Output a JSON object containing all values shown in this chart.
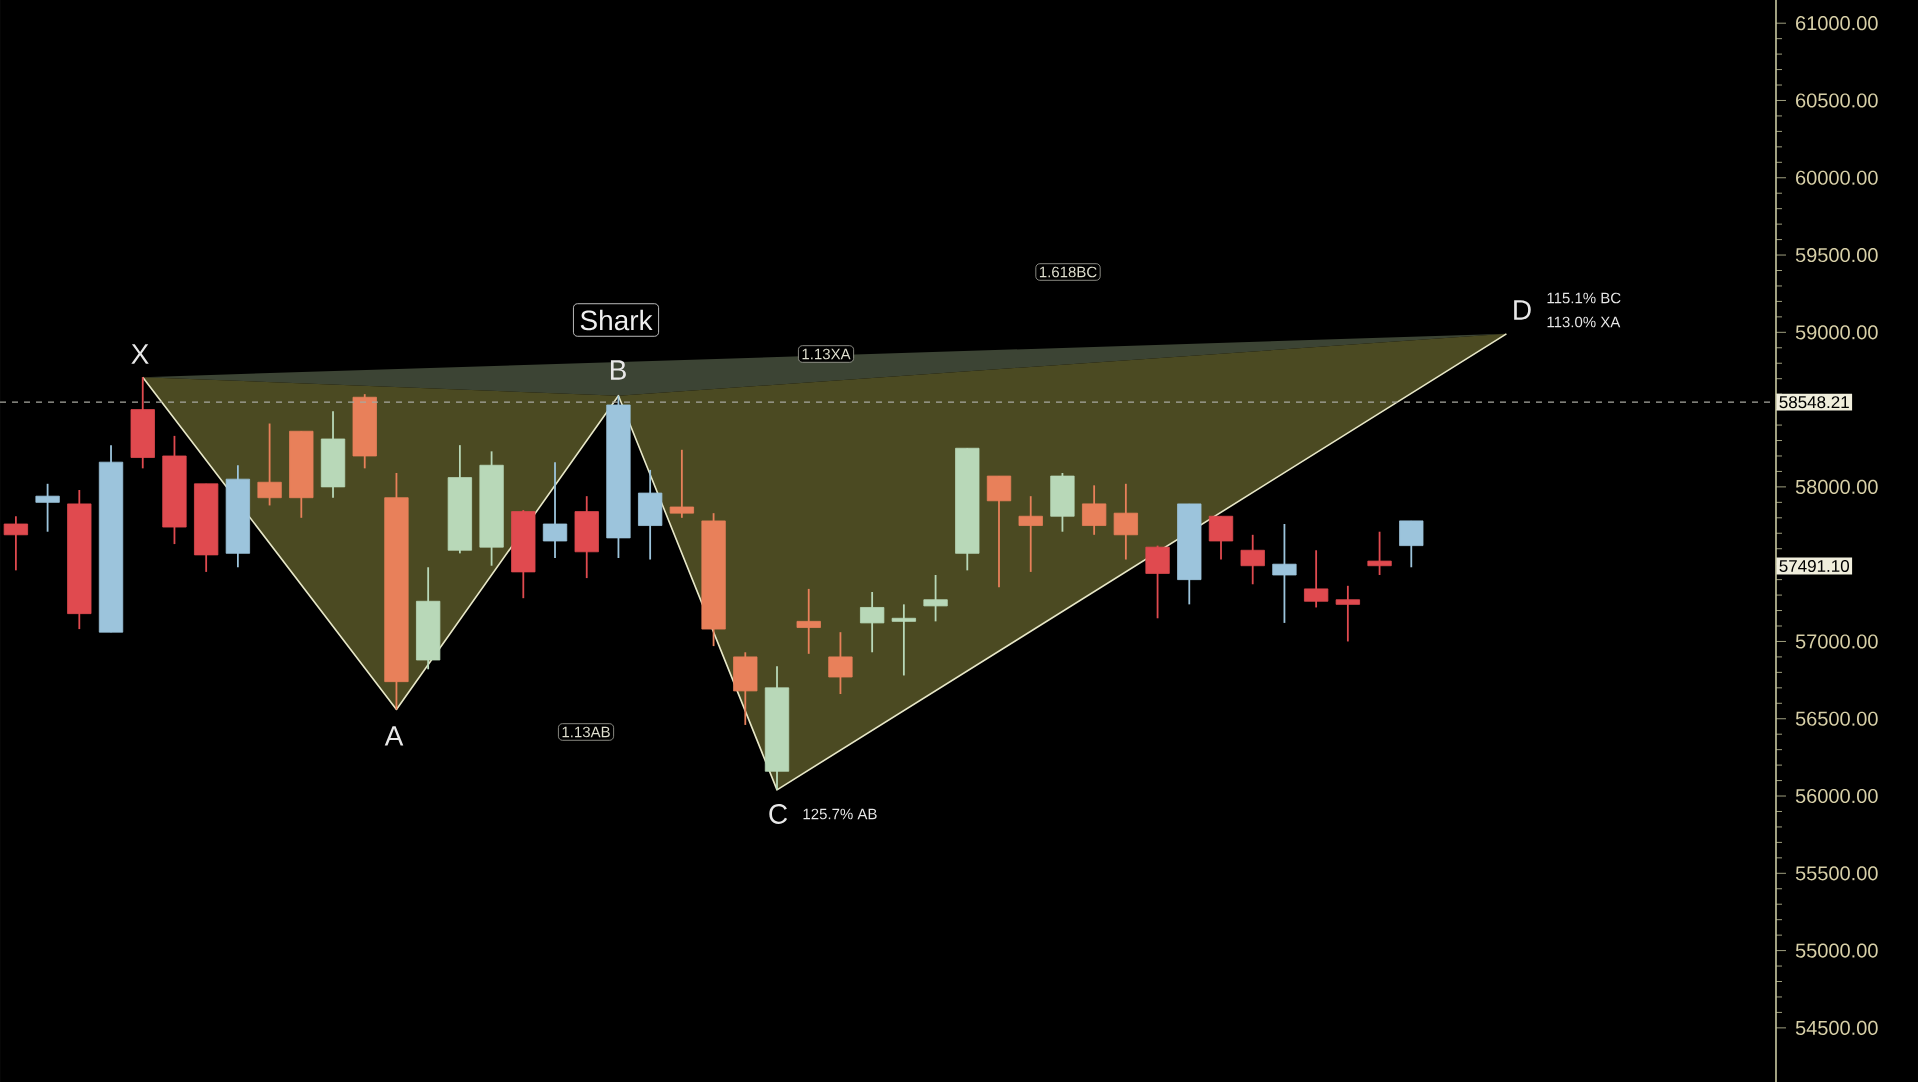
{
  "chart_data": {
    "type": "candlestick",
    "categories": [
      null,
      null,
      null,
      null,
      null,
      null,
      null,
      null,
      null,
      null,
      null,
      null,
      null,
      null,
      null,
      null,
      null,
      null,
      null,
      null,
      null,
      null,
      null,
      null,
      null,
      null,
      null,
      null,
      null,
      null,
      null,
      null,
      null,
      null,
      null,
      null,
      null,
      null,
      null,
      null,
      null,
      null,
      null,
      null,
      null,
      null,
      null,
      null,
      null,
      null,
      null,
      null,
      null,
      null,
      null,
      null
    ],
    "ohlc": [
      [
        57760,
        57810,
        57460,
        57690
      ],
      [
        57900,
        58020,
        57710,
        57940
      ],
      [
        57890,
        57980,
        57080,
        57180
      ],
      [
        57060,
        58270,
        57060,
        58160
      ],
      [
        58500,
        58710,
        58120,
        58190
      ],
      [
        58200,
        58330,
        57630,
        57740
      ],
      [
        58020,
        58020,
        57450,
        57560
      ],
      [
        57570,
        58140,
        57480,
        58050
      ],
      [
        58030,
        58410,
        57880,
        57930
      ],
      [
        58360,
        58360,
        57800,
        57930
      ],
      [
        58000,
        58490,
        57930,
        58310
      ],
      [
        58580,
        58600,
        58120,
        58200
      ],
      [
        57930,
        58090,
        56560,
        56740
      ],
      [
        56880,
        57480,
        56820,
        57260
      ],
      [
        57590,
        58270,
        57570,
        58060
      ],
      [
        57610,
        58230,
        57490,
        58140
      ],
      [
        57840,
        57850,
        57280,
        57450
      ],
      [
        57650,
        58160,
        57540,
        57760
      ],
      [
        57840,
        57940,
        57410,
        57580
      ],
      [
        57670,
        58590,
        57540,
        58530
      ],
      [
        57750,
        58110,
        57530,
        57960
      ],
      [
        57870,
        58240,
        57800,
        57830
      ],
      [
        57780,
        57830,
        56970,
        57080
      ],
      [
        56900,
        56930,
        56460,
        56680
      ],
      [
        56160,
        56840,
        56040,
        56700
      ],
      [
        57130,
        57340,
        56920,
        57090
      ],
      [
        56900,
        57060,
        56660,
        56770
      ],
      [
        57120,
        57320,
        56930,
        57220
      ],
      [
        57130,
        57240,
        56780,
        57150
      ],
      [
        57230,
        57430,
        57130,
        57270
      ],
      [
        57570,
        58250,
        57460,
        58250
      ],
      [
        58070,
        58070,
        57350,
        57910
      ],
      [
        57810,
        57940,
        57450,
        57750
      ],
      [
        57810,
        58090,
        57710,
        58070
      ],
      [
        57890,
        58010,
        57690,
        57750
      ],
      [
        57830,
        58020,
        57530,
        57690
      ],
      [
        57610,
        57620,
        57150,
        57440
      ],
      [
        57400,
        57890,
        57240,
        57890
      ],
      [
        57810,
        57810,
        57530,
        57650
      ],
      [
        57590,
        57690,
        57370,
        57490
      ],
      [
        57430,
        57760,
        57120,
        57500
      ],
      [
        57340,
        57590,
        57220,
        57260
      ],
      [
        57270,
        57360,
        57000,
        57240
      ],
      [
        57520,
        57710,
        57430,
        57490
      ],
      [
        57620,
        57780,
        57480,
        57780
      ],
      null,
      null,
      null,
      null,
      null,
      null,
      null,
      null,
      null,
      null,
      null
    ],
    "colors": [
      "#e04a4f",
      "#9cc4dc",
      "#e04a4f",
      "#9cc4dc",
      "#e04a4f",
      "#e04a4f",
      "#e04a4f",
      "#9cc4dc",
      "#e8805a",
      "#e8805a",
      "#b8d8b8",
      "#e8805a",
      "#e8805a",
      "#b8d8b8",
      "#b8d8b8",
      "#b8d8b8",
      "#e04a4f",
      "#9cc4dc",
      "#e04a4f",
      "#9cc4dc",
      "#9cc4dc",
      "#e8805a",
      "#e8805a",
      "#e8805a",
      "#b8d8b8",
      "#e8805a",
      "#e8805a",
      "#b8d8b8",
      "#b8d8b8",
      "#b8d8b8",
      "#b8d8b8",
      "#e8805a",
      "#e8805a",
      "#b8d8b8",
      "#e8805a",
      "#e8805a",
      "#e04a4f",
      "#9cc4dc",
      "#e04a4f",
      "#e04a4f",
      "#9cc4dc",
      "#e04a4f",
      "#e04a4f",
      "#e04a4f",
      "#9cc4dc",
      null,
      null,
      null,
      null,
      null,
      null,
      null,
      null,
      null,
      null,
      null
    ],
    "series": [
      {
        "type": "line",
        "color": "#e8e8c8",
        "values": [
          null,
          null,
          null,
          null,
          58710,
          null,
          null,
          null,
          null,
          null,
          null,
          null,
          56560,
          null,
          null,
          null,
          null,
          null,
          null,
          58590,
          null,
          null,
          null,
          null,
          56040,
          null,
          null,
          null,
          null,
          null,
          null,
          null,
          null,
          null,
          null,
          null,
          null,
          null,
          null,
          null,
          null,
          null,
          null,
          null,
          null,
          null,
          null,
          58990,
          null,
          null,
          null,
          null,
          null,
          null,
          null,
          null
        ]
      }
    ],
    "ylim": [
      54150,
      61150
    ],
    "yticks": [
      {
        "value": 54500,
        "label": "54500.00"
      },
      {
        "value": 55000,
        "label": "55000.00"
      },
      {
        "value": 55500,
        "label": "55500.00"
      },
      {
        "value": 56000,
        "label": "56000.00"
      },
      {
        "value": 56500,
        "label": "56500.00"
      },
      {
        "value": 57000,
        "label": "57000.00"
      },
      {
        "value": 57500,
        "label": null
      },
      {
        "value": 58000,
        "label": "58000.00"
      },
      {
        "value": 58500,
        "label": null
      },
      {
        "value": 59000,
        "label": "59000.00"
      },
      {
        "value": 59500,
        "label": "59500.00"
      },
      {
        "value": 60000,
        "label": "60000.00"
      },
      {
        "value": 60500,
        "label": "60500.00"
      },
      {
        "value": 61000,
        "label": "61000.00"
      }
    ],
    "ref_lines": [
      {
        "axis": "y",
        "value": 58548.21,
        "label": "58548.21",
        "color": "#a8a8a0",
        "line_style": "dashed"
      }
    ],
    "annotations": [
      "Shark",
      "1.13XA",
      "1.618BC",
      "1.13AB",
      "X",
      "A",
      "B",
      "C",
      "125.7% AB",
      "D",
      "115.1% BC",
      "113.0% XA",
      "57491.10"
    ]
  }
}
